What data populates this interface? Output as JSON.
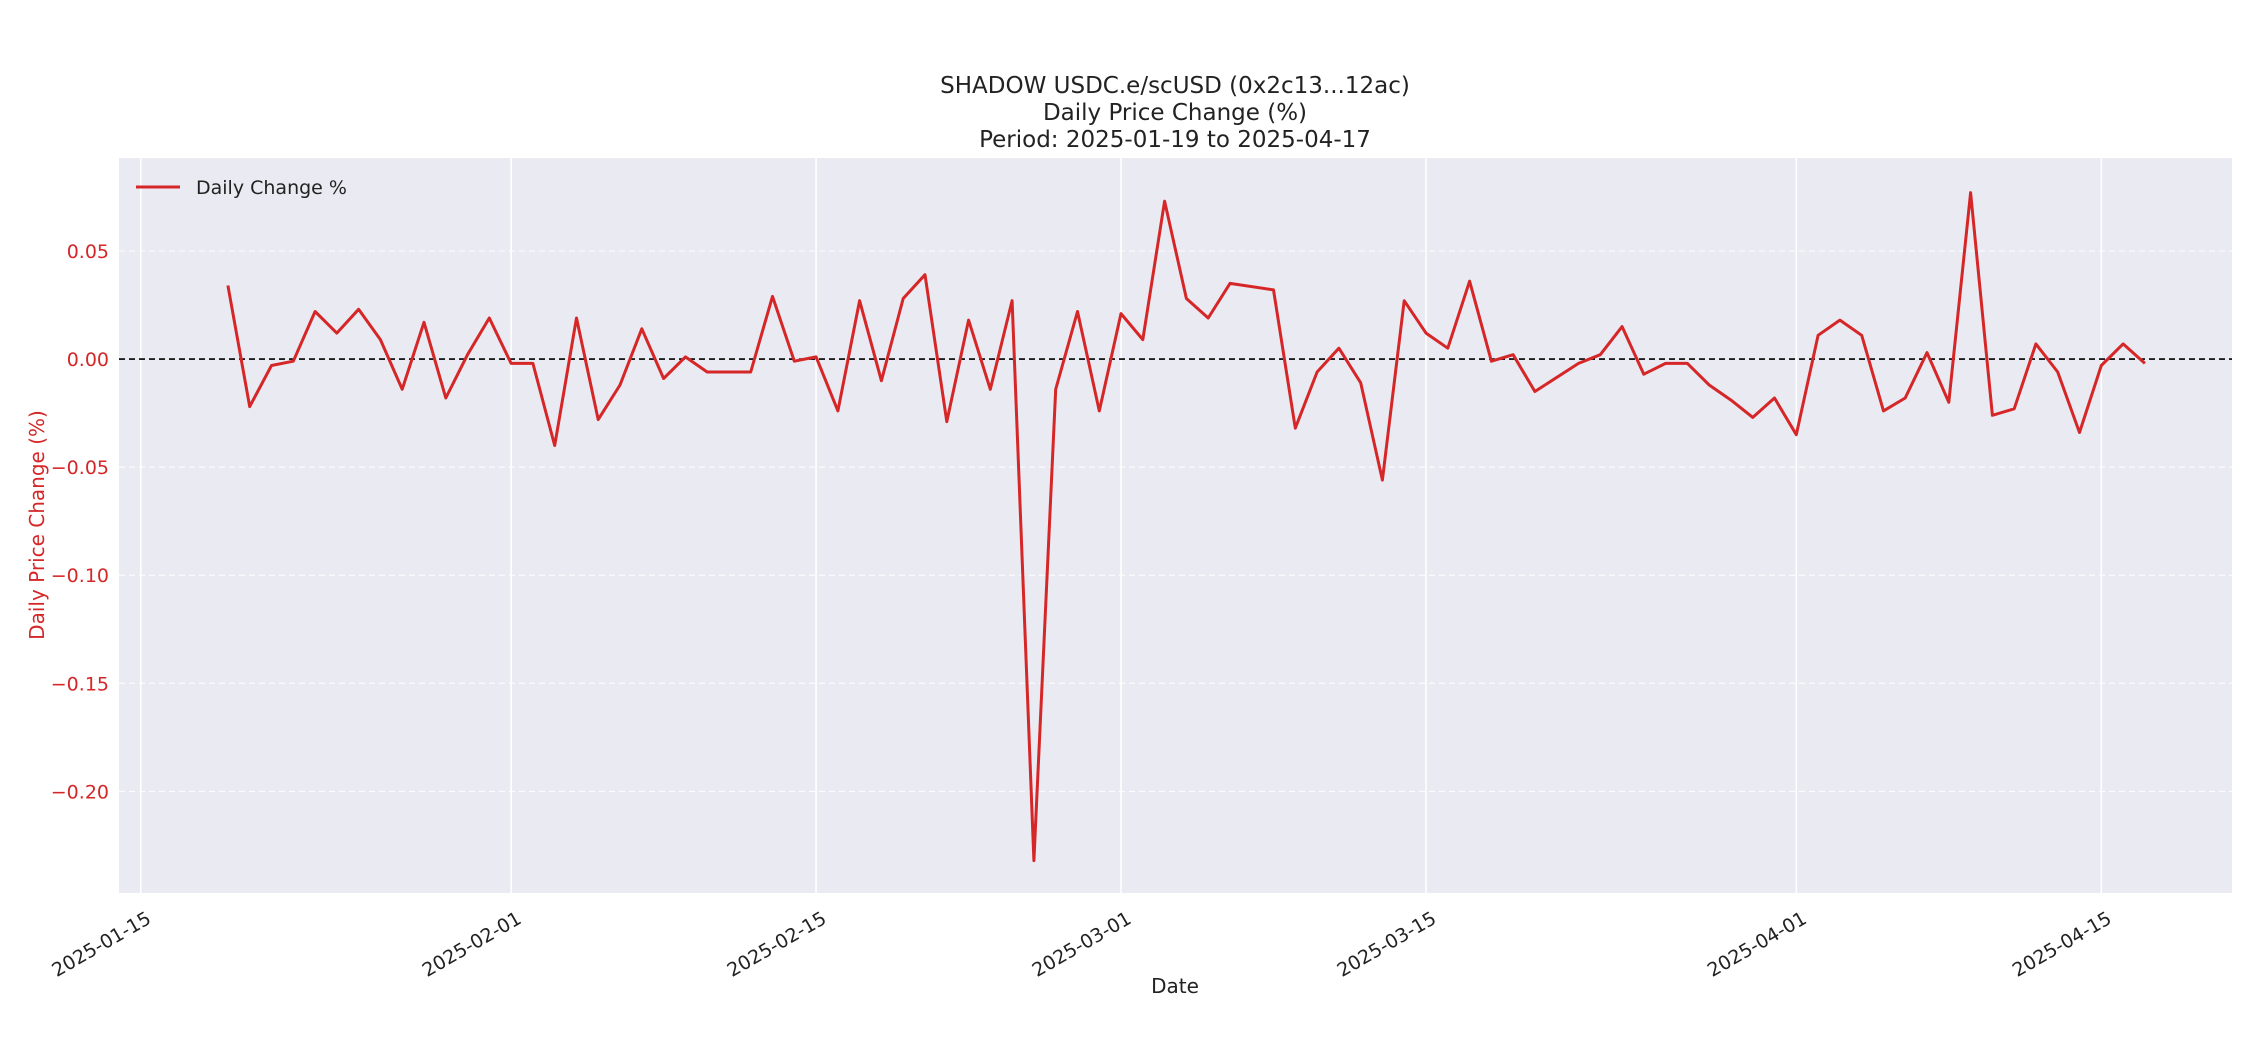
{
  "chart_data": {
    "type": "line",
    "title_lines": [
      "SHADOW USDC.e/scUSD (0x2c13...12ac)",
      "Daily Price Change (%)",
      "Period: 2025-01-19 to 2025-04-17"
    ],
    "xlabel": "Date",
    "ylabel": "Daily Price Change (%)",
    "x_tick_labels": [
      "2025-01-15",
      "2025-02-01",
      "2025-02-15",
      "2025-03-01",
      "2025-03-15",
      "2025-04-01",
      "2025-04-15"
    ],
    "y_tick_labels": [
      "0.05",
      "0.00",
      "−0.05",
      "−0.10",
      "−0.15",
      "−0.20"
    ],
    "y_ticks": [
      0.05,
      0.0,
      -0.05,
      -0.1,
      -0.15,
      -0.2
    ],
    "ylim": [
      -0.247,
      0.093
    ],
    "xlim": [
      "2025-01-14",
      "2025-04-21"
    ],
    "grid": true,
    "reference_line": 0.0,
    "legend_position": "top-left",
    "colors": {
      "series": "#d62728",
      "ylabel": "#d62728",
      "plot_background": "#eaeaf2",
      "grid": "#ffffff",
      "reference_line": "#000000"
    },
    "series": [
      {
        "name": "Daily Change %",
        "x": [
          "2025-01-19",
          "2025-01-20",
          "2025-01-21",
          "2025-01-22",
          "2025-01-23",
          "2025-01-24",
          "2025-01-25",
          "2025-01-26",
          "2025-01-27",
          "2025-01-28",
          "2025-01-29",
          "2025-01-30",
          "2025-01-31",
          "2025-02-01",
          "2025-02-02",
          "2025-02-03",
          "2025-02-04",
          "2025-02-05",
          "2025-02-06",
          "2025-02-07",
          "2025-02-08",
          "2025-02-09",
          "2025-02-10",
          "2025-02-12",
          "2025-02-13",
          "2025-02-14",
          "2025-02-15",
          "2025-02-16",
          "2025-02-17",
          "2025-02-18",
          "2025-02-19",
          "2025-02-20",
          "2025-02-21",
          "2025-02-22",
          "2025-02-23",
          "2025-02-24",
          "2025-02-25",
          "2025-02-26",
          "2025-02-27",
          "2025-02-28",
          "2025-03-01",
          "2025-03-02",
          "2025-03-03",
          "2025-03-04",
          "2025-03-05",
          "2025-03-06",
          "2025-03-08",
          "2025-03-09",
          "2025-03-10",
          "2025-03-11",
          "2025-03-12",
          "2025-03-13",
          "2025-03-14",
          "2025-03-15",
          "2025-03-16",
          "2025-03-17",
          "2025-03-18",
          "2025-03-19",
          "2025-03-20",
          "2025-03-22",
          "2025-03-23",
          "2025-03-24",
          "2025-03-25",
          "2025-03-26",
          "2025-03-27",
          "2025-03-28",
          "2025-03-29",
          "2025-03-30",
          "2025-03-31",
          "2025-04-01",
          "2025-04-02",
          "2025-04-03",
          "2025-04-04",
          "2025-04-05",
          "2025-04-06",
          "2025-04-07",
          "2025-04-08",
          "2025-04-09",
          "2025-04-10",
          "2025-04-11",
          "2025-04-12",
          "2025-04-13",
          "2025-04-14",
          "2025-04-15",
          "2025-04-16",
          "2025-04-17"
        ],
        "values": [
          0.034,
          -0.022,
          -0.003,
          -0.001,
          0.022,
          0.012,
          0.023,
          0.009,
          -0.014,
          0.017,
          -0.018,
          0.002,
          0.019,
          -0.002,
          -0.002,
          -0.04,
          0.019,
          -0.028,
          -0.012,
          0.014,
          -0.009,
          0.001,
          -0.006,
          -0.006,
          0.029,
          -0.001,
          0.001,
          -0.024,
          0.027,
          -0.01,
          0.028,
          0.039,
          -0.029,
          0.018,
          -0.014,
          0.027,
          -0.232,
          -0.014,
          0.022,
          -0.024,
          0.021,
          0.009,
          0.073,
          0.028,
          0.019,
          0.035,
          0.032,
          -0.032,
          -0.006,
          0.005,
          -0.011,
          -0.056,
          0.027,
          0.012,
          0.005,
          0.036,
          -0.001,
          0.002,
          -0.015,
          -0.002,
          0.002,
          0.015,
          -0.007,
          -0.002,
          -0.002,
          -0.012,
          -0.019,
          -0.027,
          -0.018,
          -0.035,
          0.011,
          0.018,
          0.011,
          -0.024,
          -0.018,
          0.003,
          -0.02,
          0.077,
          -0.026,
          -0.023,
          0.007,
          -0.006,
          -0.034,
          -0.003,
          0.007,
          -0.002
        ]
      }
    ]
  }
}
